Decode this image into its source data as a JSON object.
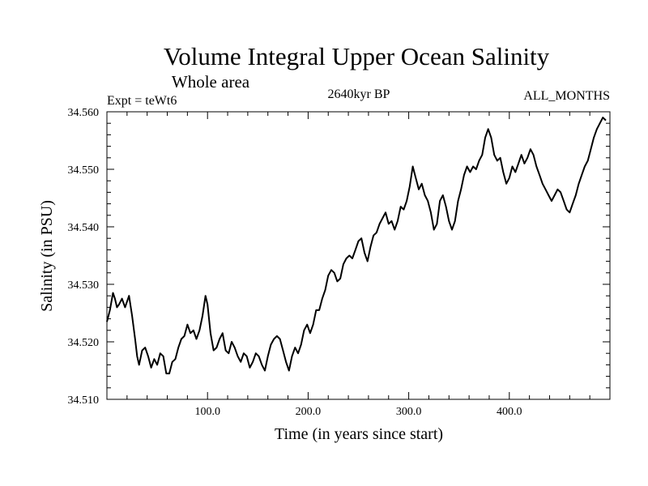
{
  "chart_data": {
    "type": "line",
    "title": "Volume Integral Upper Ocean Salinity",
    "subtitle": "Whole area",
    "annotations": {
      "left": "Expt = teWt6",
      "center": "2640kyr BP",
      "right": "ALL_MONTHS"
    },
    "xlabel": "Time (in years since start)",
    "ylabel": "Salinity (in PSU)",
    "xlim": [
      0,
      500
    ],
    "ylim": [
      34.51,
      34.56
    ],
    "xticks": [
      100,
      200,
      300,
      400
    ],
    "xtick_labels": [
      "100.0",
      "200.0",
      "300.0",
      "400.0"
    ],
    "yticks": [
      34.51,
      34.52,
      34.53,
      34.54,
      34.55,
      34.56
    ],
    "ytick_labels": [
      "34.510",
      "34.520",
      "34.530",
      "34.540",
      "34.550",
      "34.560"
    ],
    "grid": false,
    "series": [
      {
        "name": "Salinity",
        "color": "#000000",
        "points": [
          [
            0,
            34.5235
          ],
          [
            3,
            34.5255
          ],
          [
            6,
            34.5285
          ],
          [
            8,
            34.5275
          ],
          [
            10,
            34.526
          ],
          [
            12,
            34.5265
          ],
          [
            15,
            34.5275
          ],
          [
            18,
            34.526
          ],
          [
            22,
            34.528
          ],
          [
            25,
            34.5245
          ],
          [
            28,
            34.5205
          ],
          [
            30,
            34.5175
          ],
          [
            32,
            34.516
          ],
          [
            35,
            34.5185
          ],
          [
            38,
            34.519
          ],
          [
            41,
            34.5175
          ],
          [
            44,
            34.5155
          ],
          [
            47,
            34.517
          ],
          [
            50,
            34.516
          ],
          [
            53,
            34.518
          ],
          [
            56,
            34.5175
          ],
          [
            59,
            34.5145
          ],
          [
            62,
            34.5145
          ],
          [
            65,
            34.5165
          ],
          [
            68,
            34.517
          ],
          [
            71,
            34.519
          ],
          [
            74,
            34.5205
          ],
          [
            77,
            34.521
          ],
          [
            80,
            34.523
          ],
          [
            83,
            34.5215
          ],
          [
            86,
            34.522
          ],
          [
            89,
            34.5205
          ],
          [
            92,
            34.522
          ],
          [
            95,
            34.5245
          ],
          [
            98,
            34.528
          ],
          [
            100,
            34.5265
          ],
          [
            103,
            34.5215
          ],
          [
            106,
            34.5185
          ],
          [
            109,
            34.519
          ],
          [
            112,
            34.5205
          ],
          [
            115,
            34.5215
          ],
          [
            118,
            34.5185
          ],
          [
            121,
            34.518
          ],
          [
            124,
            34.52
          ],
          [
            127,
            34.519
          ],
          [
            130,
            34.5175
          ],
          [
            133,
            34.5165
          ],
          [
            136,
            34.518
          ],
          [
            139,
            34.5175
          ],
          [
            142,
            34.5155
          ],
          [
            145,
            34.5165
          ],
          [
            148,
            34.518
          ],
          [
            151,
            34.5175
          ],
          [
            154,
            34.516
          ],
          [
            157,
            34.515
          ],
          [
            160,
            34.5175
          ],
          [
            163,
            34.5195
          ],
          [
            166,
            34.5205
          ],
          [
            169,
            34.521
          ],
          [
            172,
            34.5205
          ],
          [
            175,
            34.5185
          ],
          [
            178,
            34.5165
          ],
          [
            181,
            34.515
          ],
          [
            184,
            34.5175
          ],
          [
            187,
            34.519
          ],
          [
            190,
            34.518
          ],
          [
            193,
            34.5195
          ],
          [
            196,
            34.522
          ],
          [
            199,
            34.523
          ],
          [
            202,
            34.5215
          ],
          [
            205,
            34.523
          ],
          [
            208,
            34.5255
          ],
          [
            211,
            34.5255
          ],
          [
            214,
            34.5275
          ],
          [
            217,
            34.529
          ],
          [
            220,
            34.5315
          ],
          [
            223,
            34.5325
          ],
          [
            226,
            34.532
          ],
          [
            229,
            34.5305
          ],
          [
            232,
            34.531
          ],
          [
            235,
            34.5335
          ],
          [
            238,
            34.5345
          ],
          [
            241,
            34.535
          ],
          [
            244,
            34.5345
          ],
          [
            247,
            34.536
          ],
          [
            250,
            34.5375
          ],
          [
            253,
            34.538
          ],
          [
            256,
            34.5355
          ],
          [
            259,
            34.534
          ],
          [
            262,
            34.5365
          ],
          [
            265,
            34.5385
          ],
          [
            268,
            34.539
          ],
          [
            271,
            34.5405
          ],
          [
            274,
            34.5415
          ],
          [
            277,
            34.5425
          ],
          [
            280,
            34.5405
          ],
          [
            283,
            34.541
          ],
          [
            286,
            34.5395
          ],
          [
            289,
            34.541
          ],
          [
            292,
            34.5435
          ],
          [
            295,
            34.543
          ],
          [
            298,
            34.5445
          ],
          [
            301,
            34.547
          ],
          [
            304,
            34.5505
          ],
          [
            307,
            34.5485
          ],
          [
            310,
            34.5465
          ],
          [
            313,
            34.5475
          ],
          [
            316,
            34.5455
          ],
          [
            319,
            34.5445
          ],
          [
            322,
            34.5425
          ],
          [
            325,
            34.5395
          ],
          [
            328,
            34.5405
          ],
          [
            331,
            34.5445
          ],
          [
            334,
            34.5455
          ],
          [
            337,
            34.5435
          ],
          [
            340,
            34.541
          ],
          [
            343,
            34.5395
          ],
          [
            346,
            34.541
          ],
          [
            349,
            34.5445
          ],
          [
            352,
            34.5465
          ],
          [
            355,
            34.549
          ],
          [
            358,
            34.5505
          ],
          [
            361,
            34.5495
          ],
          [
            364,
            34.5505
          ],
          [
            367,
            34.55
          ],
          [
            370,
            34.5515
          ],
          [
            373,
            34.5525
          ],
          [
            376,
            34.5555
          ],
          [
            379,
            34.557
          ],
          [
            382,
            34.5555
          ],
          [
            385,
            34.5525
          ],
          [
            388,
            34.5515
          ],
          [
            391,
            34.552
          ],
          [
            394,
            34.5495
          ],
          [
            397,
            34.5475
          ],
          [
            400,
            34.5485
          ],
          [
            403,
            34.5505
          ],
          [
            406,
            34.5495
          ],
          [
            409,
            34.551
          ],
          [
            412,
            34.5525
          ],
          [
            415,
            34.551
          ],
          [
            418,
            34.552
          ],
          [
            421,
            34.5535
          ],
          [
            424,
            34.5525
          ],
          [
            427,
            34.5505
          ],
          [
            430,
            34.549
          ],
          [
            433,
            34.5475
          ],
          [
            436,
            34.5465
          ],
          [
            439,
            34.5455
          ],
          [
            442,
            34.5445
          ],
          [
            445,
            34.5455
          ],
          [
            448,
            34.5465
          ],
          [
            451,
            34.546
          ],
          [
            454,
            34.5445
          ],
          [
            457,
            34.543
          ],
          [
            460,
            34.5425
          ],
          [
            463,
            34.544
          ],
          [
            466,
            34.5455
          ],
          [
            469,
            34.5475
          ],
          [
            472,
            34.549
          ],
          [
            475,
            34.5505
          ],
          [
            478,
            34.5515
          ],
          [
            481,
            34.5535
          ],
          [
            484,
            34.5555
          ],
          [
            487,
            34.557
          ],
          [
            490,
            34.558
          ],
          [
            493,
            34.559
          ],
          [
            496,
            34.5585
          ]
        ]
      }
    ]
  }
}
